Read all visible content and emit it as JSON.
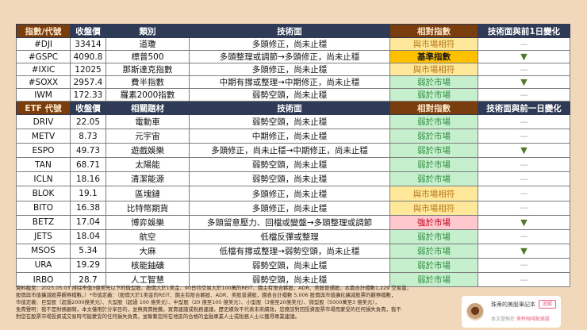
{
  "index_table": {
    "headers": [
      "指數/代號",
      "收盤價",
      "類別",
      "技術面",
      "相對指數",
      "技術面與前1日變化"
    ],
    "rows": [
      {
        "symbol": "#DJI",
        "close": "33414",
        "category": "道瓊",
        "technical": "多頭修正，尚未止穩",
        "relative": "與市場相符",
        "rel_type": "match",
        "change": "—",
        "chg_type": "flat"
      },
      {
        "symbol": "#GSPC",
        "close": "4090.8",
        "category": "標普500",
        "technical": "多頭整理或調節→多頭修正，尚未止穩",
        "relative": "基準指數",
        "rel_type": "bench",
        "change": "▼",
        "chg_type": "down"
      },
      {
        "symbol": "#IXIC",
        "close": "12025",
        "category": "那斯達克指數",
        "technical": "多頭修正，尚未止穩",
        "relative": "與市場相符",
        "rel_type": "match",
        "change": "—",
        "chg_type": "flat"
      },
      {
        "symbol": "#SOXX",
        "close": "2957.4",
        "category": "費半指數",
        "technical": "中期有撐或整理→中期修正，尚未止穩",
        "relative": "弱於市場",
        "rel_type": "weak",
        "change": "▼",
        "chg_type": "down"
      },
      {
        "symbol": "IWM",
        "close": "172.33",
        "category": "羅素2000指數",
        "technical": "弱勢空頭，尚未止穩",
        "relative": "弱於市場",
        "rel_type": "weak",
        "change": "—",
        "chg_type": "flat"
      }
    ]
  },
  "etf_table": {
    "headers": [
      "ETF 代號",
      "收盤價",
      "相關題材",
      "技術面",
      "相對指數",
      "技術面與前一日變化"
    ],
    "rows": [
      {
        "symbol": "DRIV",
        "close": "22.05",
        "category": "電動車",
        "technical": "弱勢空頭，尚未止穩",
        "relative": "弱於市場",
        "rel_type": "weak",
        "change": "—",
        "chg_type": "flat"
      },
      {
        "symbol": "METV",
        "close": "8.73",
        "category": "元宇宙",
        "technical": "中期修正，尚未止穩",
        "relative": "弱於市場",
        "rel_type": "weak",
        "change": "—",
        "chg_type": "flat"
      },
      {
        "symbol": "ESPO",
        "close": "49.73",
        "category": "遊戲娛樂",
        "technical": "多頭修正，尚未止穩→中期修正，尚未止穩",
        "relative": "弱於市場",
        "rel_type": "weak",
        "change": "▼",
        "chg_type": "down"
      },
      {
        "symbol": "TAN",
        "close": "68.71",
        "category": "太陽能",
        "technical": "弱勢空頭，尚未止穩",
        "relative": "弱於市場",
        "rel_type": "weak",
        "change": "—",
        "chg_type": "flat"
      },
      {
        "symbol": "ICLN",
        "close": "18.16",
        "category": "清潔能源",
        "technical": "弱勢空頭，尚未止穩",
        "relative": "弱於市場",
        "rel_type": "weak",
        "change": "—",
        "chg_type": "flat"
      },
      {
        "symbol": "BLOK",
        "close": "19.1",
        "category": "區塊鏈",
        "technical": "多頭修正，尚未止穩",
        "relative": "與市場相符",
        "rel_type": "match",
        "change": "—",
        "chg_type": "flat"
      },
      {
        "symbol": "BITO",
        "close": "16.38",
        "category": "比特幣期貨",
        "technical": "多頭修正，尚未止穩",
        "relative": "與市場相符",
        "rel_type": "match",
        "change": "—",
        "chg_type": "flat"
      },
      {
        "symbol": "BETZ",
        "close": "17.04",
        "category": "博弈娛樂",
        "technical": "多頭留意壓力、回檔或變盤→多頭整理或調節",
        "relative": "強於市場",
        "rel_type": "strong",
        "change": "▼",
        "chg_type": "down"
      },
      {
        "symbol": "JETS",
        "close": "18.04",
        "category": "航空",
        "technical": "低檔反彈或整理",
        "relative": "弱於市場",
        "rel_type": "weak",
        "change": "—",
        "chg_type": "flat"
      },
      {
        "symbol": "MSOS",
        "close": "5.34",
        "category": "大麻",
        "technical": "低檔有撐或整理→弱勢空頭，尚未止穩",
        "relative": "弱於市場",
        "rel_type": "weak",
        "change": "▼",
        "chg_type": "down"
      },
      {
        "symbol": "URA",
        "close": "19.29",
        "category": "核能鈾礦",
        "technical": "弱勢空頭，尚未止穩",
        "relative": "弱於市場",
        "rel_type": "weak",
        "change": "—",
        "chg_type": "flat"
      },
      {
        "symbol": "IRBO",
        "close": "28.7",
        "category": "人工智慧",
        "technical": "弱勢空頭，尚未止穩",
        "relative": "弱於市場",
        "rel_type": "weak",
        "change": "—",
        "chg_type": "flat"
      }
    ]
  },
  "notes": [
    "資料截至：2023.05.03 排除市值3億美元以下的微型股、股價大於1美金、90日均交易大於100萬的REIT、園主有限合夥股、ADR、美股普通股，本篇合計檔數1,229 交易量，",
    "股價與市值擴減股票觀察檔數。）*市值定義：（股價大於1美金的REIT、園主有限合夥股、ADR、美股普通股，園表合計檔數 5,006 股價與市值擴化擴減股票的觀察檔數，",
    "市值定義：巨型股（超過2000億美元）、大型股（超過 100 億美元）、中型股（20 億至100 億美元）、小型股（3億至20億美元）、微型股（5000萬至3 億美元），",
    "免責聲明：我不是財務顧問，本文僅用於分享目的，並無買賣推薦，買賣建議或稅務建議，歷史績效不代表未來績效，您應該對因投資股票市場而蒙受的任何損失負責，我不",
    "對您在股票市場投資或交易時可能蒙受的任何損失負責，並聯繫您所在地區的合格的金融專業人士或稅務人士以獲得專業建議。"
  ],
  "author": {
    "name": "珠蒂的美股筆記本",
    "follow_label": "追蹤",
    "published_prefix": "本文發佈於",
    "publication": "來杯咖啡配美股"
  },
  "colors": {
    "header_navy": "#2f3a56",
    "header_brown": "#7a3d0e",
    "background": "#f1d8bb",
    "match": "#ffe89a",
    "bench": "#ffc000",
    "weak": "#c6efce",
    "strong": "#ffc7ce",
    "down_arrow": "#4f7a28"
  }
}
